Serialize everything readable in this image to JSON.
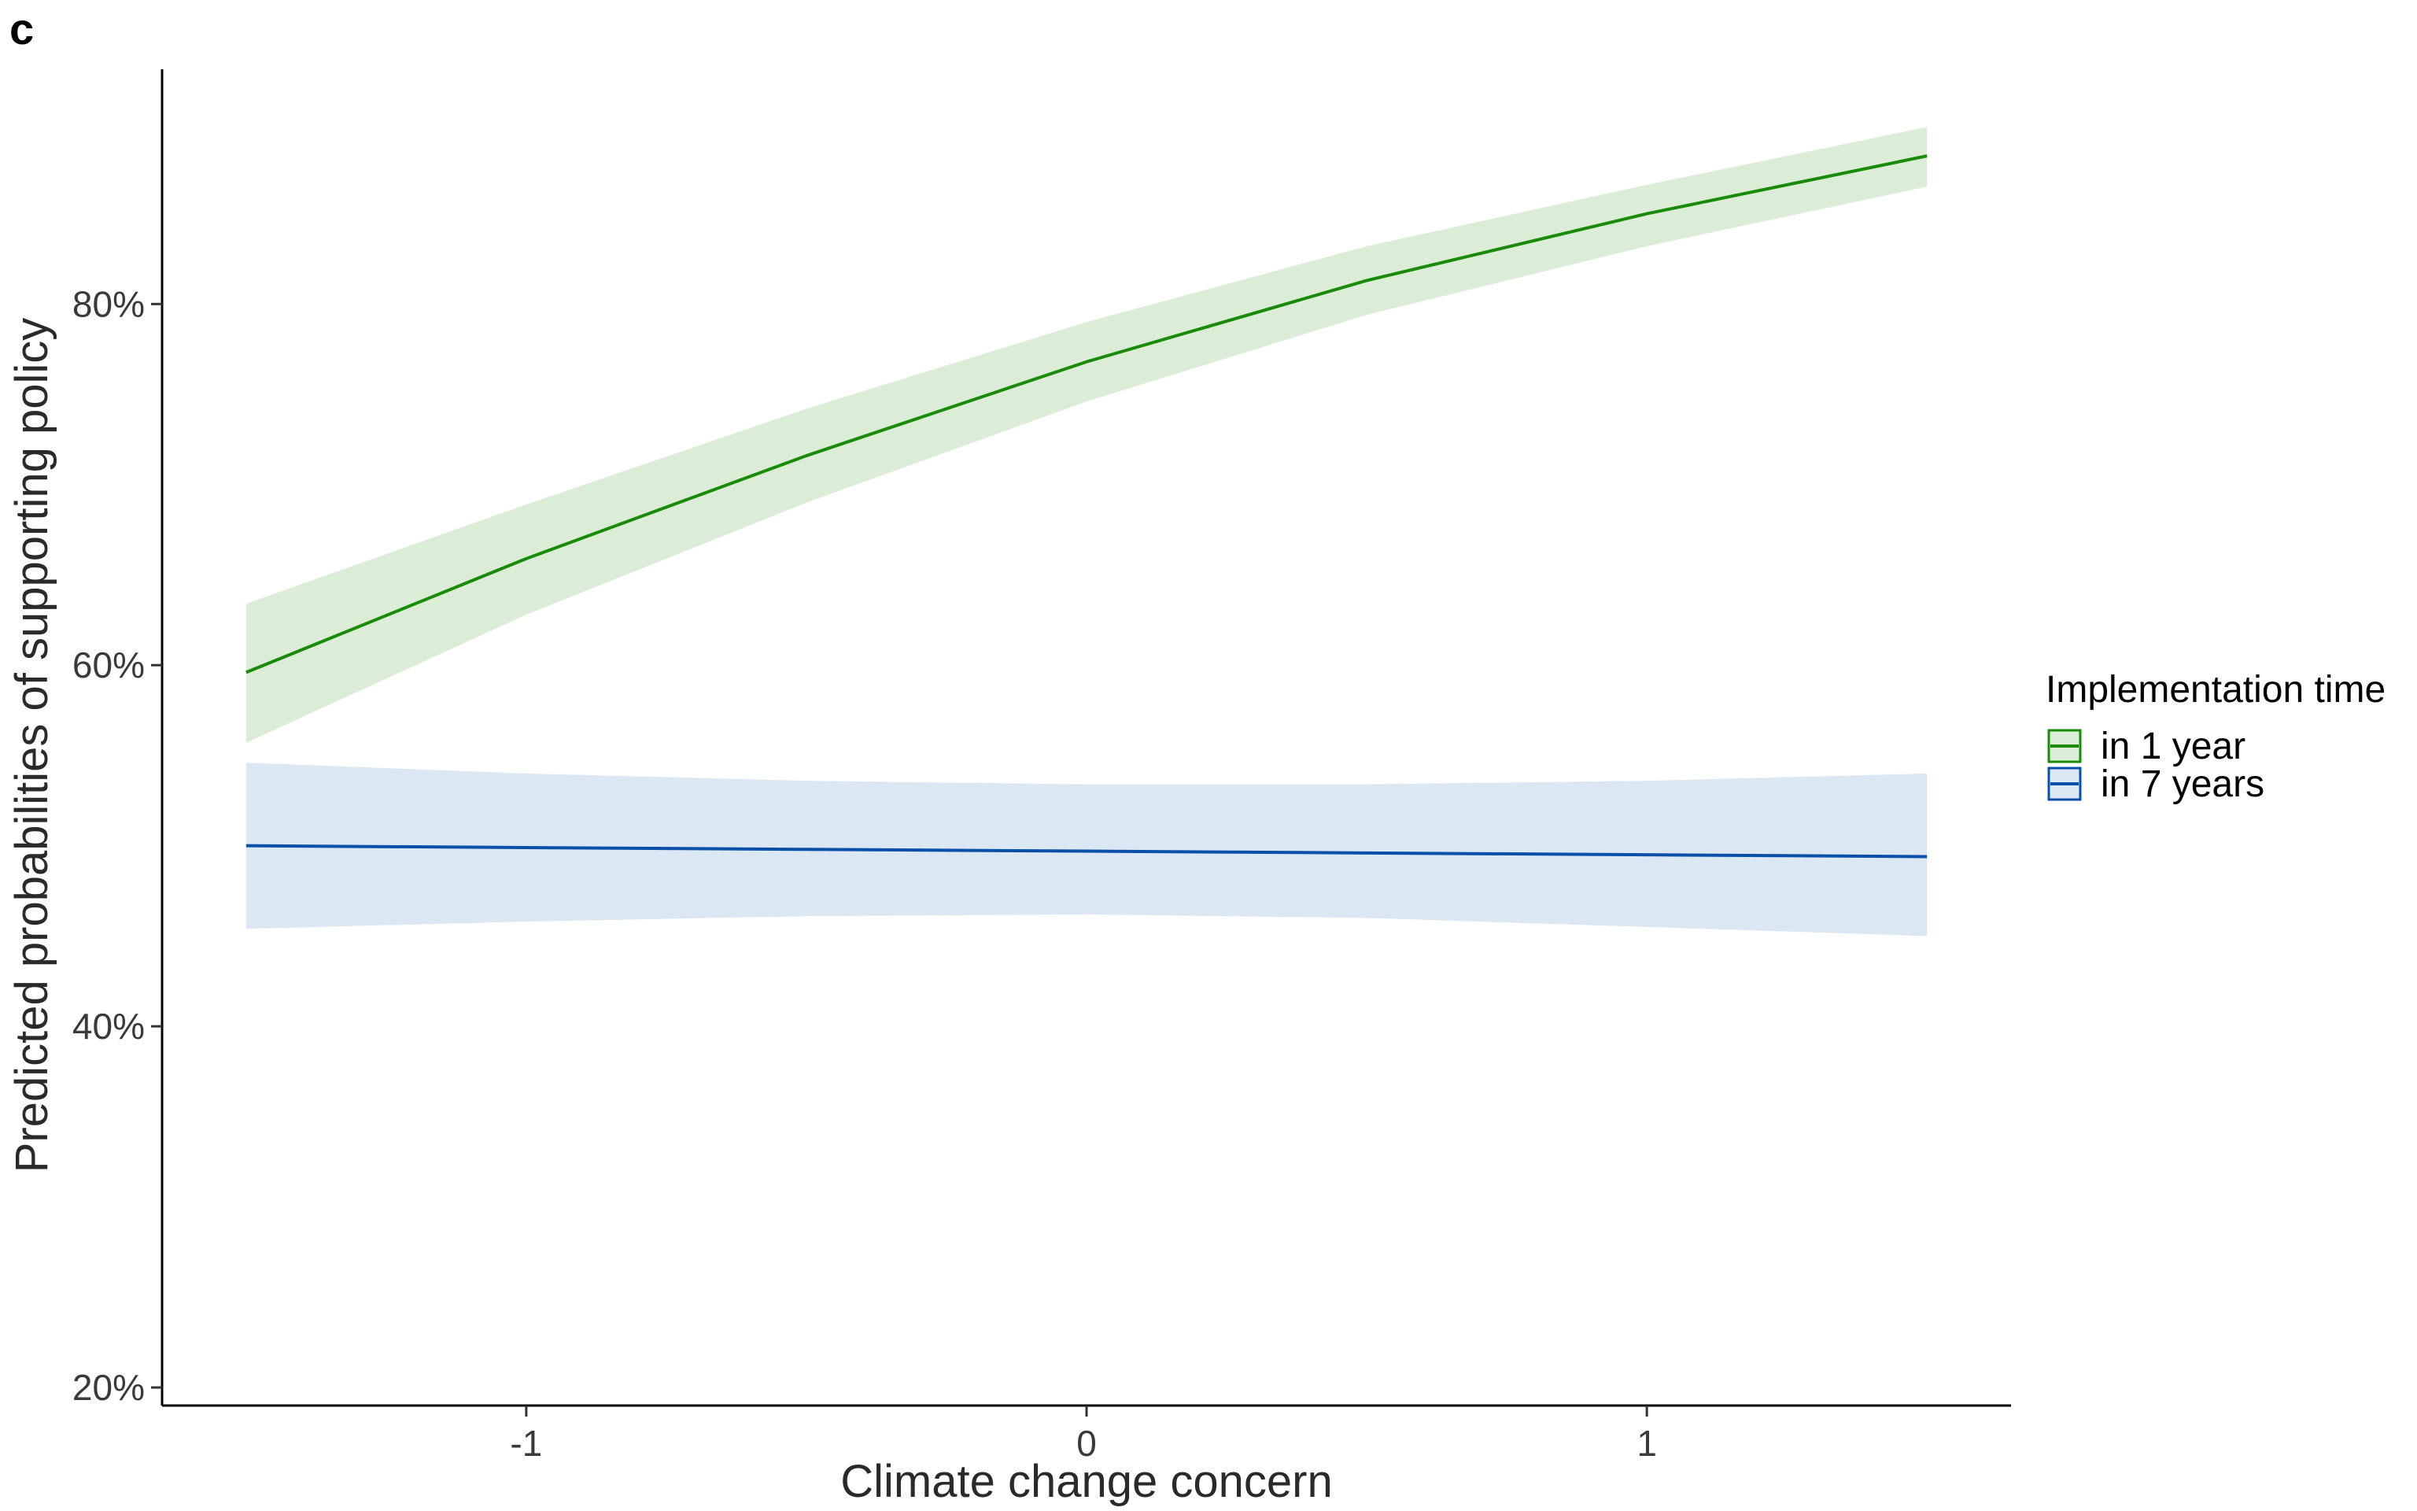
{
  "chart_data": {
    "type": "line",
    "panel_label": "c",
    "xlabel": "Climate change concern",
    "ylabel": "Predicted probabilities of supporting policy",
    "xlim": [
      -1.65,
      1.65
    ],
    "ylim": [
      0.19,
      0.93
    ],
    "x_ticks": [
      -1,
      0,
      1
    ],
    "x_tick_labels": [
      "-1",
      "0",
      "1"
    ],
    "y_ticks": [
      0.2,
      0.4,
      0.6,
      0.8
    ],
    "y_tick_labels": [
      "20%",
      "40%",
      "60%",
      "80%"
    ],
    "grid": false,
    "legend": {
      "title": "Implementation time",
      "placement": "right"
    },
    "series": [
      {
        "name": "in 1 year",
        "color": "#1a8a0a",
        "fill": "#dcedd7",
        "x": [
          -1.5,
          -1.0,
          -0.5,
          0.0,
          0.5,
          1.0,
          1.5
        ],
        "y": [
          0.596,
          0.659,
          0.716,
          0.768,
          0.813,
          0.85,
          0.882
        ],
        "lower": [
          0.557,
          0.628,
          0.69,
          0.746,
          0.794,
          0.832,
          0.865
        ],
        "upper": [
          0.634,
          0.689,
          0.742,
          0.79,
          0.832,
          0.866,
          0.898
        ]
      },
      {
        "name": "in 7 years",
        "color": "#0a4fa8",
        "fill": "#dce7f4",
        "x": [
          -1.5,
          -1.0,
          -0.5,
          0.0,
          0.5,
          1.0,
          1.5
        ],
        "y": [
          0.5,
          0.499,
          0.498,
          0.497,
          0.496,
          0.495,
          0.494
        ],
        "lower": [
          0.454,
          0.458,
          0.461,
          0.462,
          0.46,
          0.455,
          0.45
        ],
        "upper": [
          0.546,
          0.54,
          0.536,
          0.534,
          0.534,
          0.536,
          0.54
        ]
      }
    ]
  }
}
